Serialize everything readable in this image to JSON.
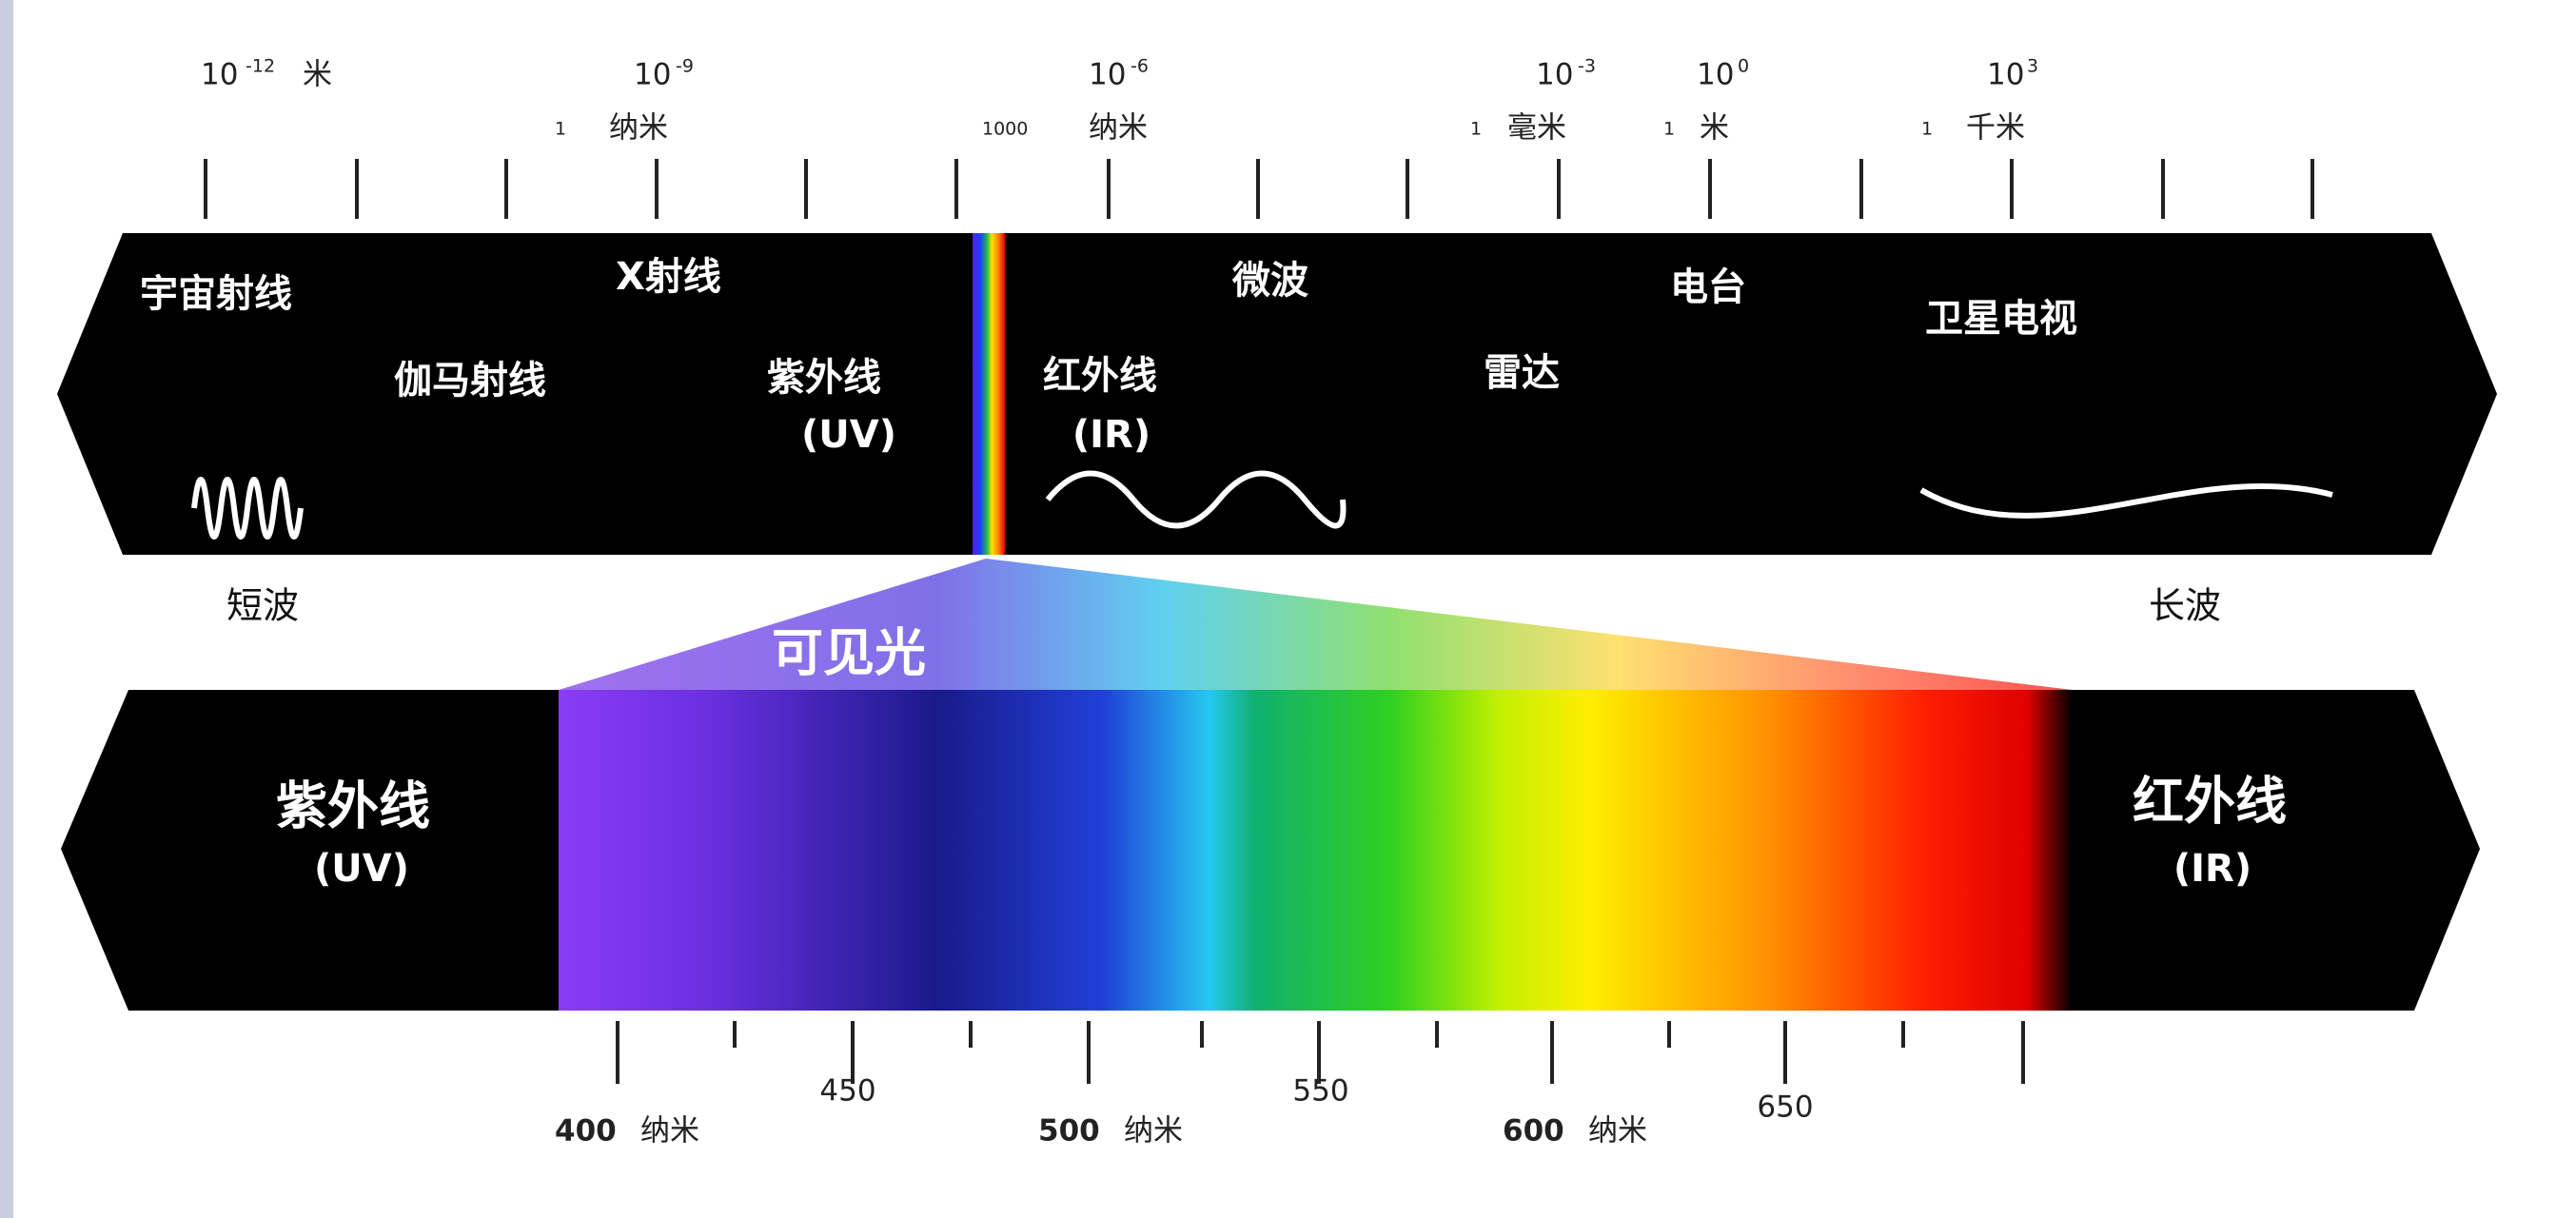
{
  "top_scale": [
    {
      "base": "10",
      "exp": "-12",
      "unit": "米"
    },
    {
      "base": "10",
      "exp": "-9",
      "value": "1",
      "unit": "纳米"
    },
    {
      "base": "10",
      "exp": "-6",
      "value": "1000",
      "unit": "纳米"
    },
    {
      "base": "10",
      "exp": "-3",
      "value": "1",
      "unit": "毫米"
    },
    {
      "base": "10",
      "exp": "0",
      "value": "1",
      "unit": "米"
    },
    {
      "base": "10",
      "exp": "3",
      "value": "1",
      "unit": "千米"
    }
  ],
  "bands": [
    "宇宙射线",
    "X射线",
    "伽马射线",
    "紫外线",
    "(UV)",
    "红外线",
    "(IR)",
    "微波",
    "雷达",
    "电台",
    "卫星电视"
  ],
  "short_wave": "短波",
  "long_wave": "长波",
  "visible": "可见光",
  "visible_band": {
    "uv": "紫外线",
    "uv_abbr": "(UV)",
    "ir": "红外线",
    "ir_abbr": "(IR)"
  },
  "bottom_scale": [
    {
      "value": "400",
      "unit": "纳米"
    },
    {
      "value": "450"
    },
    {
      "value": "500",
      "unit": "纳米"
    },
    {
      "value": "550"
    },
    {
      "value": "600",
      "unit": "纳米"
    },
    {
      "value": "650"
    }
  ]
}
